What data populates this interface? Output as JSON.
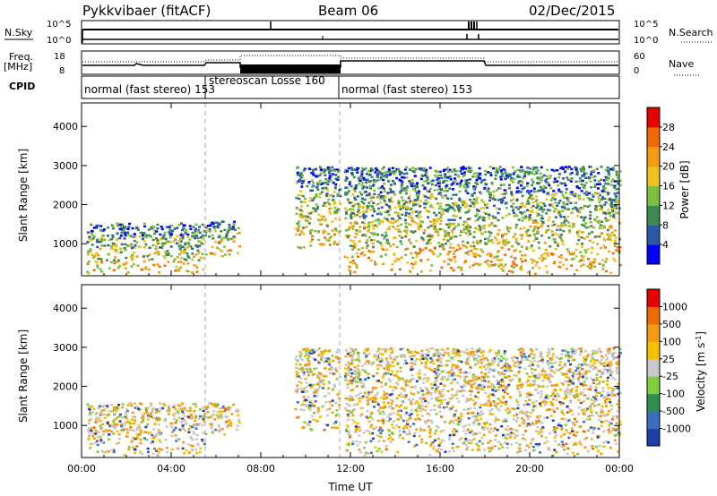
{
  "header": {
    "station": "Pykkvibaer (fitACF)",
    "beam": "Beam 06",
    "date": "02/Dec/2015"
  },
  "noise_panel": {
    "left_label": "N.Sky",
    "right_label": "N.Search",
    "left_ticks": [
      "10^5",
      "10^0"
    ],
    "right_ticks": [
      "10^5",
      "10^0"
    ]
  },
  "freq_panel": {
    "left_label_1": "Freq.",
    "left_label_2": "[MHz]",
    "right_label": "Nave",
    "left_ticks": [
      "18",
      "8"
    ],
    "right_ticks": [
      "60",
      "0"
    ]
  },
  "cpid_panel": {
    "label": "CPID",
    "segments": [
      {
        "text": "normal (fast stereo) 153",
        "start_hour": 0.0,
        "end_hour": 5.5
      },
      {
        "text": "stereoscan Losse 160",
        "start_hour": 5.5,
        "end_hour": 11.7
      },
      {
        "text": "normal (fast stereo) 153",
        "start_hour": 11.7,
        "end_hour": 24.0
      }
    ]
  },
  "colors": {
    "power": [
      "#0000ff",
      "#2a5aa8",
      "#3f8a50",
      "#7fbf3f",
      "#f0c020",
      "#f39c12",
      "#ef6a00",
      "#e60000"
    ],
    "velocity": [
      "#1f3fa8",
      "#3a6fbf",
      "#2f8f4f",
      "#7fcf3f",
      "#c8c8c8",
      "#f6c000",
      "#f39c12",
      "#ef6a00",
      "#e60000"
    ]
  },
  "chart_data": [
    {
      "type": "heatmap",
      "title": "",
      "xlabel": "Time UT",
      "ylabel": "Slant Range [km]",
      "xlim": [
        0,
        24
      ],
      "ylim": [
        180,
        4600
      ],
      "xticks": [
        "00:00",
        "04:00",
        "08:00",
        "12:00",
        "16:00",
        "20:00",
        "00:00"
      ],
      "yticks": [
        "1000",
        "2000",
        "3000",
        "4000"
      ],
      "colorbar": {
        "label": "Power [dB]",
        "ticks": [
          "28",
          "24",
          "20",
          "16",
          "12",
          "8",
          "4"
        ]
      },
      "regions": [
        {
          "start_hour": 0.2,
          "end_hour": 5.5,
          "range_km": [
            250,
            1550
          ],
          "level": "mixed low/high"
        },
        {
          "start_hour": 5.5,
          "end_hour": 7.0,
          "range_km": [
            700,
            1600
          ],
          "level": "moderate"
        },
        {
          "start_hour": 9.5,
          "end_hour": 11.5,
          "range_km": [
            900,
            3000
          ],
          "level": "low"
        },
        {
          "start_hour": 11.7,
          "end_hour": 24.0,
          "range_km": [
            250,
            3000
          ],
          "level": "mixed low/high"
        }
      ]
    },
    {
      "type": "heatmap",
      "title": "",
      "xlabel": "Time UT",
      "ylabel": "Slant Range [km]",
      "xlim": [
        0,
        24
      ],
      "ylim": [
        180,
        4600
      ],
      "xticks": [
        "00:00",
        "04:00",
        "08:00",
        "12:00",
        "16:00",
        "20:00",
        "00:00"
      ],
      "yticks": [
        "1000",
        "2000",
        "3000",
        "4000"
      ],
      "colorbar": {
        "label": "Velocity [m s^-1]",
        "ticks": [
          "1000",
          "500",
          "100",
          "25",
          "-25",
          "-100",
          "-500",
          "-1000"
        ]
      },
      "regions": [
        {
          "start_hour": 0.2,
          "end_hour": 5.5,
          "range_km": [
            250,
            1600
          ],
          "level": "negative with near-zero"
        },
        {
          "start_hour": 5.5,
          "end_hour": 7.0,
          "range_km": [
            700,
            1600
          ],
          "level": "near-zero"
        },
        {
          "start_hour": 9.5,
          "end_hour": 11.5,
          "range_km": [
            900,
            3000
          ],
          "level": "near-zero"
        },
        {
          "start_hour": 11.7,
          "end_hour": 24.0,
          "range_km": [
            250,
            3000
          ],
          "level": "mixed"
        }
      ]
    }
  ],
  "time_axis": {
    "label": "Time UT"
  }
}
